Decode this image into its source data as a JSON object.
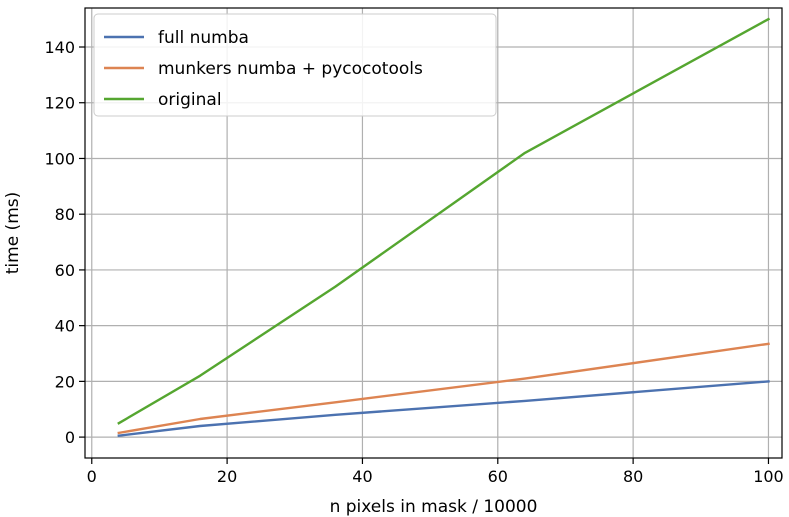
{
  "chart_data": {
    "type": "line",
    "title": "",
    "xlabel": "n pixels in mask / 10000",
    "ylabel": "time (ms)",
    "xlim": [
      -1,
      102
    ],
    "ylim": [
      -7.5,
      154
    ],
    "xticks": [
      0,
      20,
      40,
      60,
      80,
      100
    ],
    "yticks": [
      0,
      20,
      40,
      60,
      80,
      100,
      120,
      140
    ],
    "grid": true,
    "legend_position": "top-left",
    "series": [
      {
        "name": "full numba",
        "color": "#4c72b0",
        "x": [
          4,
          16,
          36,
          64,
          100
        ],
        "y": [
          0.5,
          4,
          8,
          13,
          20
        ]
      },
      {
        "name": "munkers numba + pycocotools",
        "color": "#dd8452",
        "x": [
          4,
          16,
          36,
          64,
          100
        ],
        "y": [
          1.5,
          6.5,
          12.5,
          21,
          33.5
        ]
      },
      {
        "name": "original",
        "color": "#55a630",
        "x": [
          4,
          16,
          36,
          64,
          100
        ],
        "y": [
          5,
          22,
          54,
          102,
          150
        ]
      }
    ]
  }
}
